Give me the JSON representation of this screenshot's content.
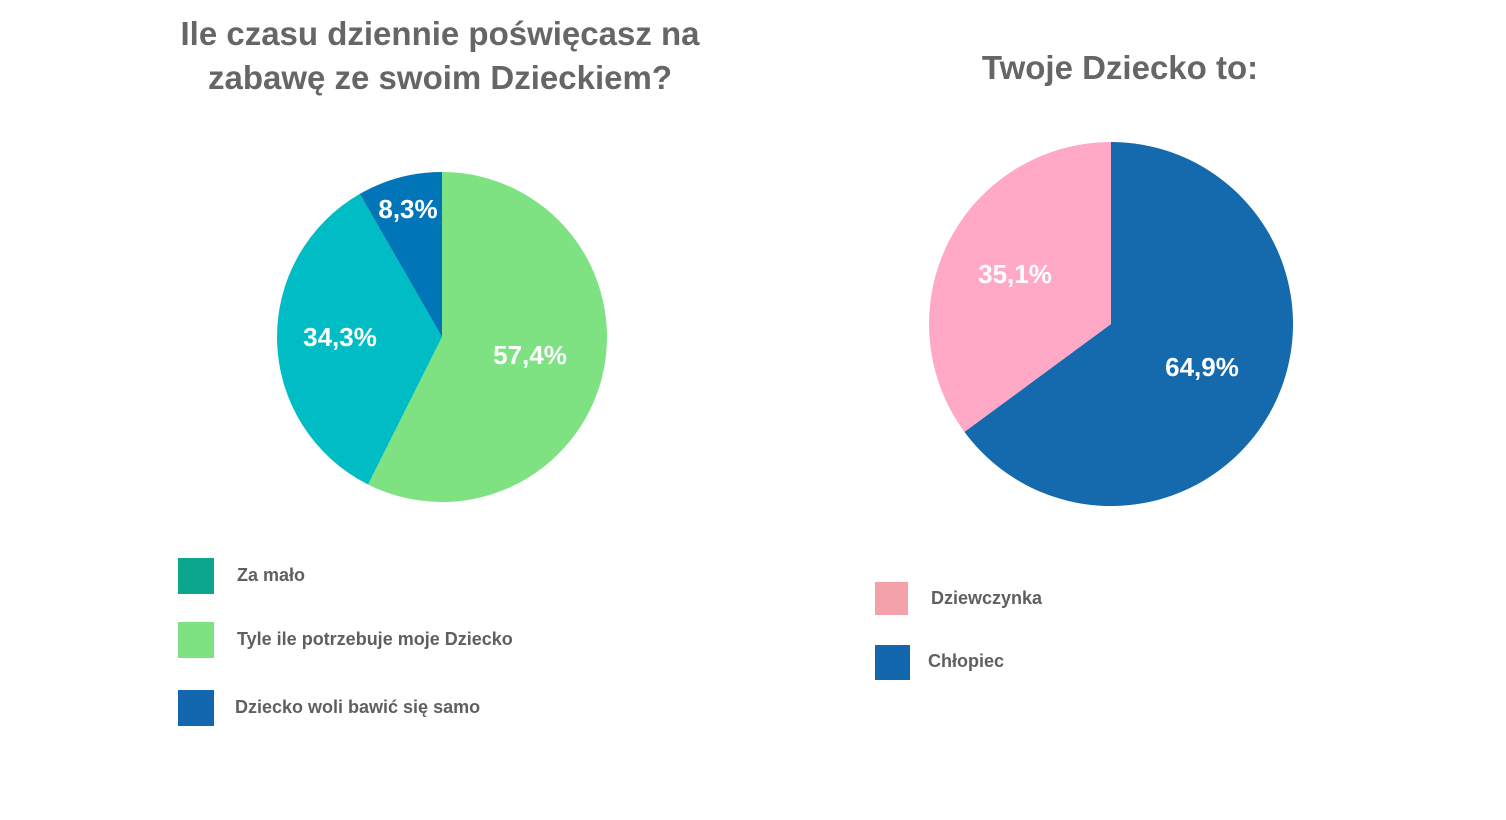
{
  "chart_data": [
    {
      "type": "pie",
      "title": "Ile czasu dziennie poświęcasz na zabawę ze swoim Dzieckiem?",
      "categories": [
        "Za mało",
        "Tyle ile potrzebuje moje Dziecko",
        "Dziecko woli bawić się samo"
      ],
      "values": [
        34.3,
        57.4,
        8.3
      ],
      "value_labels": [
        "34,3%",
        "57,4%",
        "8,3%"
      ],
      "colors": [
        "#00bcc4",
        "#7ee283",
        "#0076b9"
      ],
      "legend_colors": [
        "#0ba68c",
        "#7ee283",
        "#1367ad"
      ],
      "legend_position": "bottom-left"
    },
    {
      "type": "pie",
      "title": "Twoje Dziecko to:",
      "categories": [
        "Dziewczynka",
        "Chłopiec"
      ],
      "values": [
        35.1,
        64.9
      ],
      "value_labels": [
        "35,1%",
        "64,9%"
      ],
      "colors": [
        "#ffa9c6",
        "#1569ad"
      ],
      "legend_colors": [
        "#f4a1ac",
        "#1367ad"
      ],
      "legend_position": "bottom-left"
    }
  ]
}
